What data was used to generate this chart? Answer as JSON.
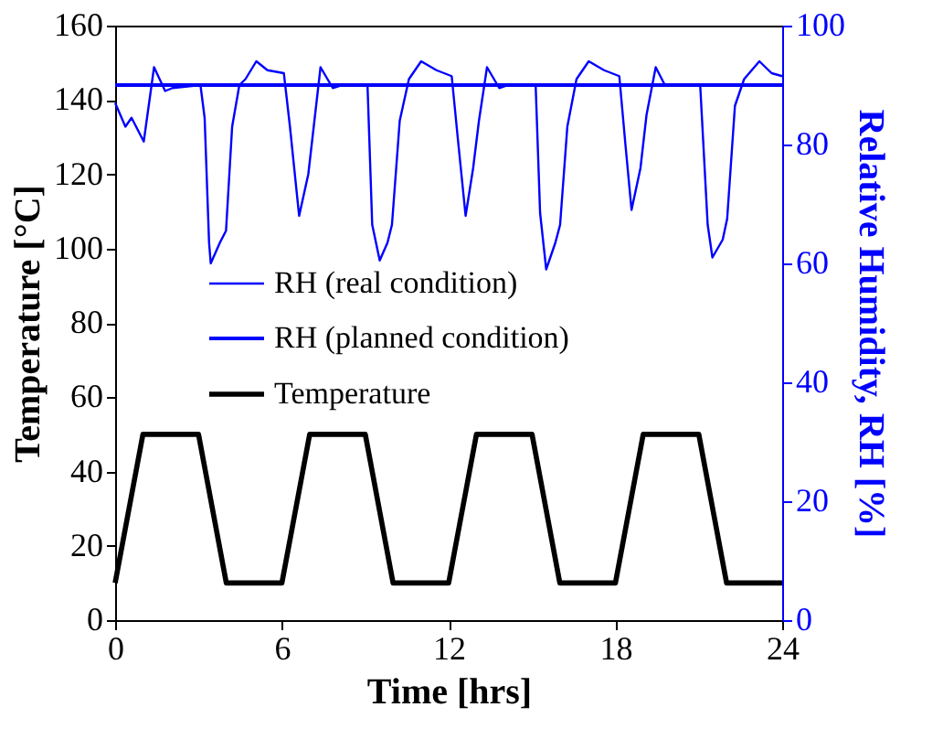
{
  "chart_data": {
    "type": "line",
    "xlabel": "Time [hrs]",
    "ylabel": "Temperature [°C]",
    "y2label": "Relative Humidity, RH [%]",
    "xlim": [
      0,
      24
    ],
    "xticks": [
      0,
      6,
      12,
      18,
      24
    ],
    "ylim": [
      0,
      160
    ],
    "yticks": [
      0,
      20,
      40,
      60,
      80,
      100,
      120,
      140,
      160
    ],
    "y2lim": [
      0,
      100
    ],
    "y2ticks": [
      0,
      20,
      40,
      60,
      80,
      100
    ],
    "legend": "center",
    "grid": false,
    "marker": "none",
    "line_style": "solid",
    "series": [
      {
        "name": "RH (real condition)",
        "color": "#0000ff",
        "axis": "y2",
        "x": [
          0,
          0.37,
          0.59,
          1.03,
          1.4,
          1.8,
          2.06,
          3.07,
          3.22,
          3.38,
          3.44,
          3.77,
          3.99,
          4.21,
          4.47,
          4.69,
          5.08,
          5.48,
          6.07,
          6.29,
          6.62,
          6.95,
          7.17,
          7.39,
          7.83,
          8.16,
          9.08,
          9.25,
          9.52,
          9.8,
          9.96,
          10.24,
          10.57,
          11.01,
          11.56,
          12.11,
          12.33,
          12.61,
          12.88,
          13.09,
          13.38,
          13.82,
          14.12,
          15.13,
          15.29,
          15.51,
          15.84,
          16.01,
          16.27,
          16.6,
          17.04,
          17.59,
          18.14,
          18.36,
          18.58,
          18.9,
          19.12,
          19.45,
          19.78,
          20.11,
          21.05,
          21.32,
          21.49,
          21.86,
          22.02,
          22.3,
          22.63,
          23.18,
          23.62,
          24
        ],
        "values": [
          87,
          83,
          84.5,
          80.5,
          93,
          89,
          89.5,
          90,
          84.5,
          63.5,
          60,
          63.5,
          65.5,
          83,
          90,
          91,
          94,
          92.5,
          92,
          83,
          68,
          75,
          84,
          93,
          89.5,
          90,
          90,
          66.5,
          60.5,
          63.5,
          66.5,
          84,
          91,
          94,
          92.5,
          91.5,
          81,
          68,
          76,
          84,
          93,
          89.5,
          90,
          90,
          68.5,
          59,
          63.5,
          66.5,
          83,
          91,
          94,
          92.5,
          91.5,
          80,
          69,
          76,
          85,
          93,
          90,
          90,
          90,
          66.5,
          61,
          64,
          67.5,
          86.5,
          91,
          94,
          92,
          91.5
        ]
      },
      {
        "name": "RH (planned condition)",
        "color": "#0000ff",
        "axis": "y2",
        "x": [
          0,
          24
        ],
        "values": [
          90,
          90
        ]
      },
      {
        "name": "Temperature",
        "color": "#000000",
        "axis": "y",
        "x": [
          0,
          1,
          3,
          4,
          6,
          7,
          9,
          10,
          12,
          13,
          15,
          16,
          18,
          19,
          21,
          22,
          24
        ],
        "values": [
          10,
          50,
          50,
          10,
          10,
          50,
          50,
          10,
          10,
          50,
          50,
          10,
          10,
          50,
          50,
          10,
          10
        ]
      }
    ]
  }
}
